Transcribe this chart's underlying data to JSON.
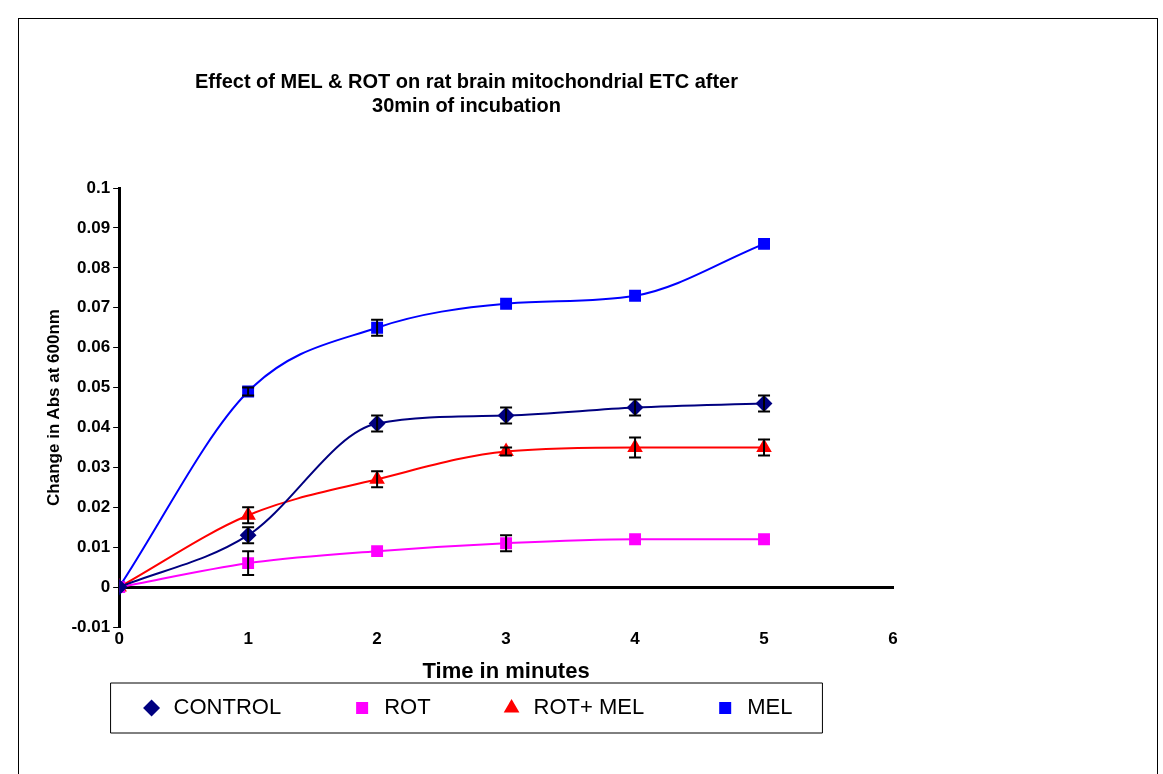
{
  "chart_data": {
    "type": "line",
    "title": "Effect of MEL & ROT on rat brain mitochondrial ETC after 30min of incubation",
    "xlabel": "Time in minutes",
    "ylabel": "Change in Abs at 600nm",
    "x": [
      0,
      1,
      2,
      3,
      4,
      5
    ],
    "xlim": [
      0,
      6
    ],
    "xticks": [
      0,
      1,
      2,
      3,
      4,
      5,
      6
    ],
    "ylim": [
      -0.01,
      0.1
    ],
    "yticks": [
      -0.01,
      0,
      0.01,
      0.02,
      0.03,
      0.04,
      0.05,
      0.06,
      0.07,
      0.08,
      0.09,
      0.1
    ],
    "grid": false,
    "legend": "bottom",
    "line_style": "solid",
    "series": [
      {
        "name": "CONTROL",
        "color": "#000080",
        "marker": "diamond",
        "values": [
          0,
          0.013,
          0.041,
          0.043,
          0.045,
          0.046
        ],
        "errors": [
          null,
          0.002,
          0.002,
          0.002,
          0.002,
          0.002
        ]
      },
      {
        "name": "ROT",
        "color": "#ff00ff",
        "marker": "square",
        "values": [
          0,
          0.006,
          0.009,
          0.011,
          0.012,
          0.012
        ],
        "errors": [
          null,
          0.003,
          null,
          0.002,
          null,
          null
        ]
      },
      {
        "name": "ROT+ MEL",
        "color": "#ff0000",
        "marker": "triangle",
        "values": [
          0,
          0.018,
          0.027,
          0.034,
          0.035,
          0.035
        ],
        "errors": [
          null,
          0.002,
          0.002,
          0.001,
          0.0025,
          0.002
        ]
      },
      {
        "name": "MEL",
        "color": "#0000ff",
        "marker": "square",
        "values": [
          0,
          0.049,
          0.065,
          0.071,
          0.073,
          0.086
        ],
        "errors": [
          null,
          0.001,
          0.002,
          null,
          null,
          null
        ]
      }
    ]
  }
}
